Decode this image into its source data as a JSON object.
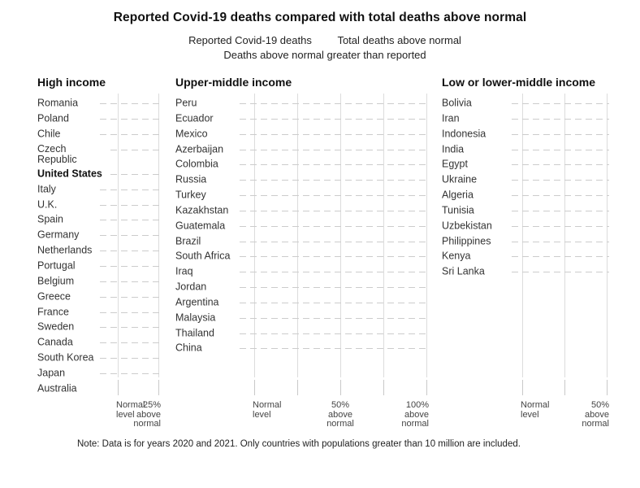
{
  "title": "Reported Covid-19 deaths compared with total deaths above normal",
  "legend": {
    "items": [
      "Reported Covid-19 deaths",
      "Total deaths above normal"
    ],
    "sub": "Deaths above normal greater than reported"
  },
  "note": "Note: Data is for years 2020 and 2021. Only countries with populations greater than 10 million are included.",
  "colors": {
    "background": "#ffffff",
    "text": "#1a1a1a",
    "label_text": "#333333",
    "axis_label_text": "#444444",
    "gridline": "#dcdcdc",
    "leader_dash": "#cccccc",
    "tick": "#c9c9c9"
  },
  "chart_data": [
    {
      "type": "scatter",
      "group_title": "High income",
      "categories": [
        {
          "name": "Romania"
        },
        {
          "name": "Poland"
        },
        {
          "name": "Chile"
        },
        {
          "name": "Czech Republic",
          "wrap": true
        },
        {
          "name": "United States",
          "bold": true
        },
        {
          "name": "Italy"
        },
        {
          "name": "U.K."
        },
        {
          "name": "Spain"
        },
        {
          "name": "Germany"
        },
        {
          "name": "Netherlands"
        },
        {
          "name": "Portugal"
        },
        {
          "name": "Belgium"
        },
        {
          "name": "Greece"
        },
        {
          "name": "France"
        },
        {
          "name": "Sweden"
        },
        {
          "name": "Canada"
        },
        {
          "name": "South Korea"
        },
        {
          "name": "Japan"
        },
        {
          "name": "Australia",
          "leader_line": false
        }
      ],
      "x_axis": {
        "unit": "percent above normal deaths",
        "min_pct": 0,
        "max_pct": 25,
        "gridlines_pct": [
          0,
          25
        ],
        "ticks": [
          {
            "pct": 0,
            "label": "Normal\nlevel",
            "align": "left"
          },
          {
            "pct": 25,
            "label": "25%\nabove\nnormal",
            "align": "right"
          }
        ]
      },
      "series": [],
      "marks": "none visible in plot area (empty grid)"
    },
    {
      "type": "scatter",
      "group_title": "Upper-middle income",
      "categories": [
        {
          "name": "Peru"
        },
        {
          "name": "Ecuador"
        },
        {
          "name": "Mexico"
        },
        {
          "name": "Azerbaijan"
        },
        {
          "name": "Colombia"
        },
        {
          "name": "Russia"
        },
        {
          "name": "Turkey"
        },
        {
          "name": "Kazakhstan"
        },
        {
          "name": "Guatemala"
        },
        {
          "name": "Brazil"
        },
        {
          "name": "South Africa"
        },
        {
          "name": "Iraq"
        },
        {
          "name": "Jordan"
        },
        {
          "name": "Argentina"
        },
        {
          "name": "Malaysia"
        },
        {
          "name": "Thailand"
        },
        {
          "name": "China"
        }
      ],
      "x_axis": {
        "unit": "percent above normal deaths",
        "min_pct": 0,
        "max_pct": 100,
        "gridlines_pct": [
          0,
          25,
          50,
          75,
          100
        ],
        "ticks": [
          {
            "pct": 0,
            "label": "Normal\nlevel",
            "align": "left"
          },
          {
            "pct": 50,
            "label": "50%\nabove\nnormal",
            "align": "center"
          },
          {
            "pct": 100,
            "label": "100%\nabove\nnormal",
            "align": "right"
          }
        ]
      },
      "series": [],
      "marks": "none visible in plot area (empty grid)"
    },
    {
      "type": "scatter",
      "group_title": "Low or lower-middle income",
      "categories": [
        {
          "name": "Bolivia"
        },
        {
          "name": "Iran"
        },
        {
          "name": "Indonesia"
        },
        {
          "name": "India"
        },
        {
          "name": "Egypt"
        },
        {
          "name": "Ukraine"
        },
        {
          "name": "Algeria"
        },
        {
          "name": "Tunisia"
        },
        {
          "name": "Uzbekistan"
        },
        {
          "name": "Philippines"
        },
        {
          "name": "Kenya"
        },
        {
          "name": "Sri Lanka"
        }
      ],
      "x_axis": {
        "unit": "percent above normal deaths",
        "min_pct": 0,
        "max_pct": 50,
        "gridlines_pct": [
          0,
          25,
          50
        ],
        "ticks": [
          {
            "pct": 0,
            "label": "Normal\nlevel",
            "align": "left"
          },
          {
            "pct": 50,
            "label": "50%\nabove\nnormal",
            "align": "right"
          }
        ]
      },
      "series": [],
      "marks": "none visible in plot area (empty grid)"
    }
  ]
}
